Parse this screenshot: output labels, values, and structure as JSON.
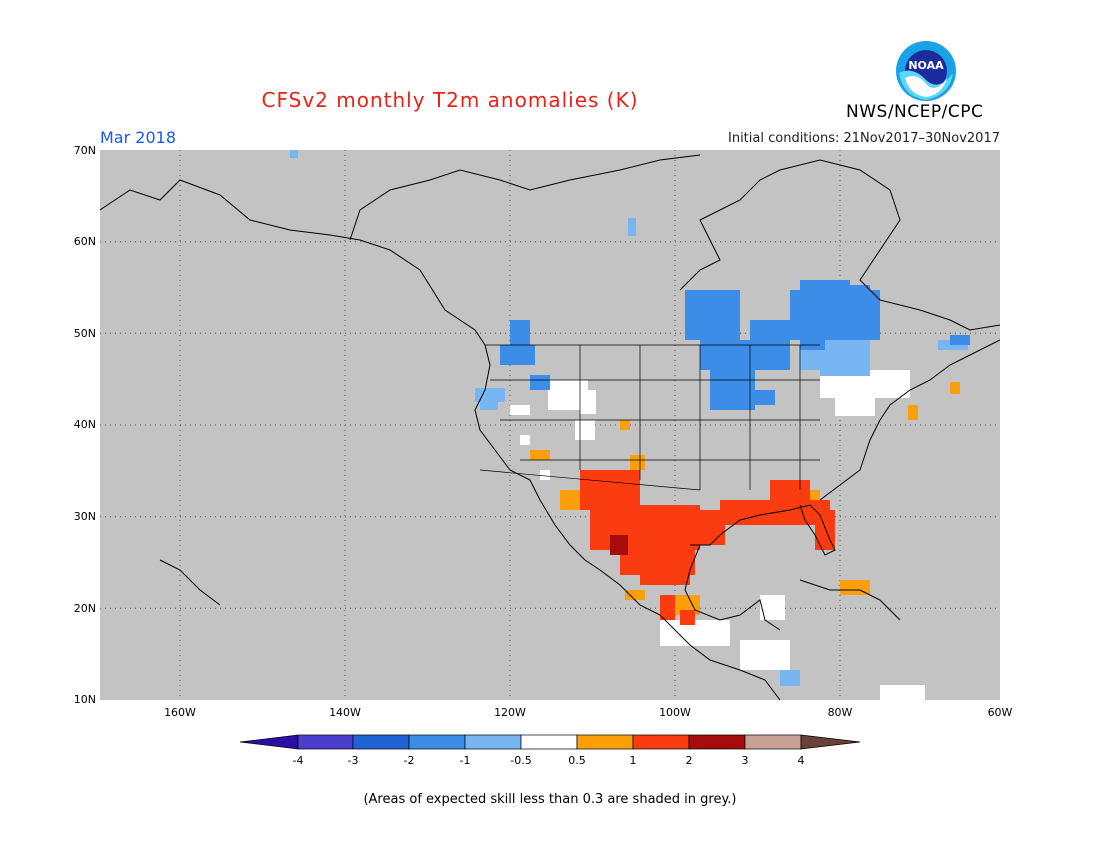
{
  "header": {
    "title": "CFSv2 monthly T2m anomalies (K)",
    "month": "Mar 2018",
    "initial_conditions": "Initial conditions: 21Nov2017–30Nov2017",
    "org": "NWS/NCEP/CPC",
    "logo_text": "NOAA"
  },
  "map": {
    "lat_labels": [
      "70N",
      "60N",
      "50N",
      "40N",
      "30N",
      "20N",
      "10N"
    ],
    "lon_labels": [
      "160W",
      "140W",
      "120W",
      "100W",
      "80W",
      "60W"
    ],
    "background_color": "#c3c3c3"
  },
  "colorbar": {
    "labels": [
      "-4",
      "-3",
      "-2",
      "-1",
      "-0.5",
      "0.5",
      "1",
      "2",
      "3",
      "4"
    ],
    "colors": [
      "#2b0fa4",
      "#4a3ecf",
      "#1d63d6",
      "#3b8de8",
      "#78b6f2",
      "#ffffff",
      "#fba00a",
      "#fb3b10",
      "#a40d0b",
      "#c9a094",
      "#6a4136"
    ]
  },
  "footer": {
    "note": "(Areas of expected skill less than 0.3 are shaded in grey.)"
  }
}
